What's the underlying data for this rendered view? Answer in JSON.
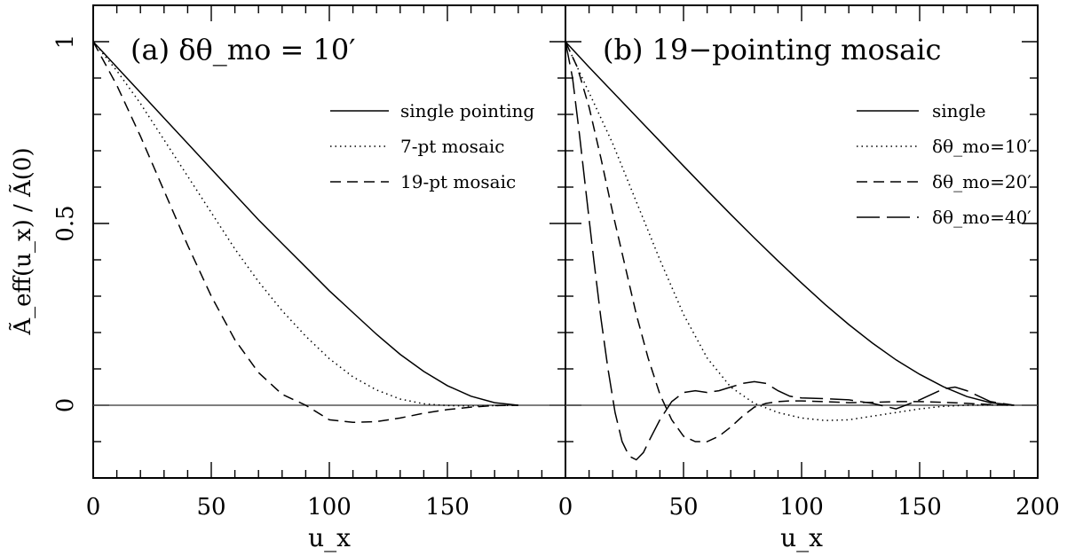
{
  "figure": {
    "ylabel": "Ã_eff(u_x) / Ã(0)",
    "xlabel": "u_x"
  },
  "chart_data": [
    {
      "type": "line",
      "panel_label": "(a) δθ_mo = 10′",
      "xlim": [
        0,
        200
      ],
      "ylim": [
        -0.2,
        1.1
      ],
      "x_ticks": [
        0,
        50,
        100,
        150
      ],
      "y_ticks": [
        0,
        0.5,
        1
      ],
      "legend_position": "top-right",
      "reference_line_y": 0,
      "series": [
        {
          "name": "single pointing",
          "style": "solid",
          "x": [
            0,
            10,
            20,
            30,
            40,
            50,
            60,
            70,
            80,
            90,
            100,
            110,
            120,
            130,
            140,
            150,
            160,
            170,
            180
          ],
          "y": [
            1,
            0.93,
            0.86,
            0.79,
            0.72,
            0.65,
            0.58,
            0.51,
            0.445,
            0.38,
            0.315,
            0.255,
            0.195,
            0.14,
            0.093,
            0.054,
            0.025,
            0.007,
            0
          ]
        },
        {
          "name": "7-pt mosaic",
          "style": "dotted",
          "x": [
            0,
            10,
            20,
            30,
            40,
            50,
            60,
            70,
            80,
            90,
            100,
            110,
            120,
            130,
            140,
            150,
            160,
            170,
            180
          ],
          "y": [
            1,
            0.92,
            0.83,
            0.73,
            0.63,
            0.53,
            0.43,
            0.34,
            0.26,
            0.19,
            0.128,
            0.078,
            0.042,
            0.017,
            0.004,
            -0.001,
            -0.002,
            -0.001,
            0
          ]
        },
        {
          "name": "19-pt mosaic",
          "style": "dashed",
          "x": [
            0,
            10,
            20,
            30,
            40,
            50,
            60,
            70,
            80,
            90,
            100,
            110,
            120,
            130,
            140,
            150,
            160,
            170,
            180
          ],
          "y": [
            1,
            0.88,
            0.74,
            0.59,
            0.44,
            0.3,
            0.18,
            0.09,
            0.03,
            0.0,
            -0.04,
            -0.047,
            -0.045,
            -0.035,
            -0.022,
            -0.012,
            -0.005,
            -0.001,
            0
          ]
        }
      ]
    },
    {
      "type": "line",
      "panel_label": "(b) 19−pointing mosaic",
      "xlim": [
        0,
        200
      ],
      "ylim": [
        -0.2,
        1.1
      ],
      "x_ticks": [
        0,
        50,
        100,
        150,
        200
      ],
      "y_ticks": [
        0,
        0.5,
        1
      ],
      "legend_position": "top-right",
      "reference_line_y": 0,
      "series": [
        {
          "name": "single",
          "style": "solid",
          "x": [
            0,
            10,
            20,
            30,
            40,
            50,
            60,
            70,
            80,
            90,
            100,
            110,
            120,
            130,
            140,
            150,
            160,
            170,
            180,
            190
          ],
          "y": [
            1,
            0.93,
            0.862,
            0.794,
            0.726,
            0.658,
            0.591,
            0.525,
            0.46,
            0.397,
            0.336,
            0.277,
            0.222,
            0.171,
            0.125,
            0.085,
            0.051,
            0.024,
            0.007,
            0
          ]
        },
        {
          "name": "δθ_mo=10′",
          "style": "dotted",
          "x": [
            0,
            10,
            20,
            30,
            40,
            50,
            60,
            70,
            80,
            90,
            100,
            110,
            120,
            130,
            140,
            150,
            160,
            170,
            180,
            190
          ],
          "y": [
            1,
            0.86,
            0.72,
            0.56,
            0.4,
            0.25,
            0.13,
            0.05,
            0.005,
            -0.02,
            -0.035,
            -0.042,
            -0.04,
            -0.03,
            -0.02,
            -0.01,
            -0.003,
            0.0,
            0.001,
            0
          ]
        },
        {
          "name": "δθ_mo=20′",
          "style": "dashed",
          "x": [
            0,
            5,
            10,
            15,
            20,
            25,
            30,
            35,
            40,
            45,
            50,
            55,
            60,
            65,
            70,
            75,
            80,
            85,
            90,
            95,
            100,
            110,
            120,
            130,
            140,
            150,
            160,
            170,
            180,
            190
          ],
          "y": [
            1,
            0.93,
            0.82,
            0.68,
            0.53,
            0.39,
            0.25,
            0.13,
            0.03,
            -0.04,
            -0.085,
            -0.1,
            -0.1,
            -0.085,
            -0.06,
            -0.03,
            -0.005,
            0.005,
            0.01,
            0.012,
            0.012,
            0.01,
            0.007,
            0.008,
            0.01,
            0.01,
            0.008,
            0.005,
            0.002,
            0
          ]
        },
        {
          "name": "δθ_mo=40′",
          "style": "longdash",
          "x": [
            0,
            3,
            6,
            9,
            12,
            15,
            18,
            21,
            24,
            27,
            30,
            33,
            36,
            40,
            45,
            50,
            55,
            60,
            65,
            70,
            75,
            80,
            85,
            90,
            95,
            100,
            110,
            120,
            130,
            140,
            150,
            160,
            165,
            170,
            180,
            190
          ],
          "y": [
            1,
            0.9,
            0.74,
            0.57,
            0.4,
            0.24,
            0.1,
            -0.02,
            -0.1,
            -0.14,
            -0.15,
            -0.13,
            -0.09,
            -0.04,
            0.01,
            0.035,
            0.04,
            0.035,
            0.04,
            0.05,
            0.06,
            0.065,
            0.06,
            0.04,
            0.025,
            0.02,
            0.018,
            0.015,
            0.005,
            -0.01,
            0.015,
            0.045,
            0.05,
            0.04,
            0.01,
            0
          ]
        }
      ]
    }
  ]
}
